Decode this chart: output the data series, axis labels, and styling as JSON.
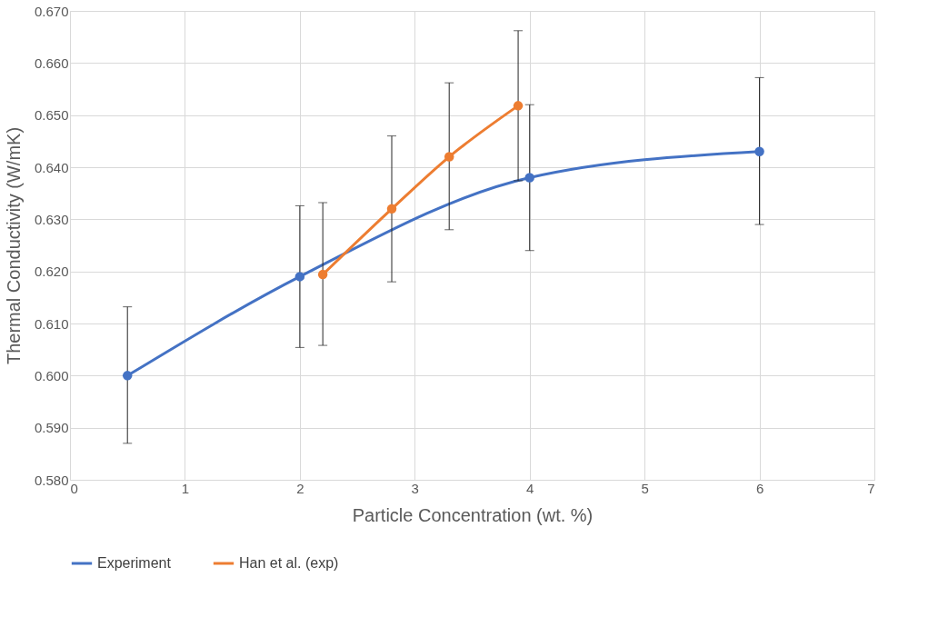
{
  "chart_data": {
    "type": "line",
    "xlabel": "Particle Concentration (wt. %)",
    "ylabel": "Thermal Conductivity (W/mK)",
    "xlim": [
      0,
      7
    ],
    "xticks": [
      0,
      1,
      2,
      3,
      4,
      5,
      6,
      7
    ],
    "ylim": [
      0.58,
      0.67
    ],
    "yticks": [
      {
        "value": 0.58,
        "label": "0.580"
      },
      {
        "value": 0.59,
        "label": "0.590"
      },
      {
        "value": 0.6,
        "label": "0.600"
      },
      {
        "value": 0.61,
        "label": "0.610"
      },
      {
        "value": 0.62,
        "label": "0.620"
      },
      {
        "value": 0.63,
        "label": "0.630"
      },
      {
        "value": 0.64,
        "label": "0.640"
      },
      {
        "value": 0.65,
        "label": "0.650"
      },
      {
        "value": 0.66,
        "label": "0.660"
      },
      {
        "value": 0.67,
        "label": "0.670"
      }
    ],
    "grid": true,
    "legend": "bottom",
    "marker": "circle",
    "line_style": "solid",
    "series": [
      {
        "name": "Experiment",
        "color": "#4472c4",
        "x": [
          0.5,
          2,
          4,
          6
        ],
        "values": [
          0.6,
          0.619,
          0.638,
          0.643
        ],
        "errors": [
          [
            0.587,
            0.6132
          ],
          [
            0.6054,
            0.6326
          ],
          [
            0.624,
            0.652
          ],
          [
            0.629,
            0.6572
          ]
        ]
      },
      {
        "name": "Han et al. (exp)",
        "color": "#ed7d31",
        "x": [
          2.2,
          2.8,
          3.3,
          3.9
        ],
        "values": [
          0.6194,
          0.632,
          0.642,
          0.6518
        ],
        "errors": [
          [
            0.6058,
            0.6332
          ],
          [
            0.618,
            0.646
          ],
          [
            0.628,
            0.6562
          ],
          [
            0.6374,
            0.6662
          ]
        ]
      }
    ]
  }
}
